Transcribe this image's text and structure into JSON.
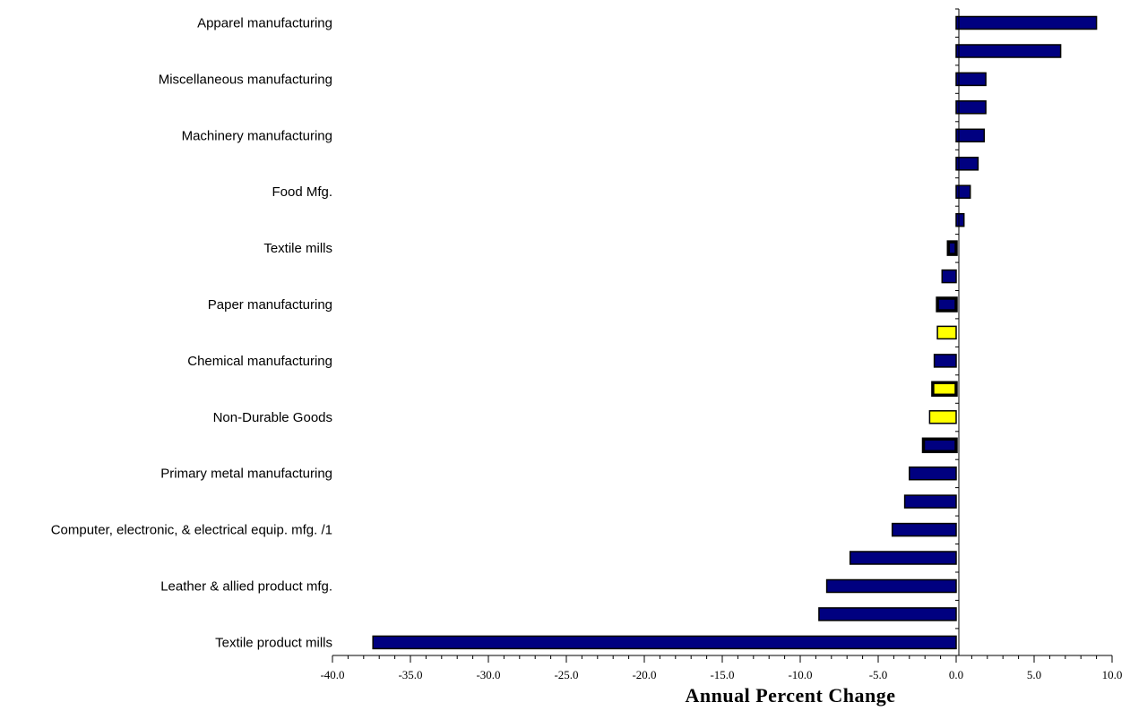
{
  "chart_data": {
    "type": "bar",
    "orientation": "horizontal",
    "title": "",
    "xlabel": "Annual Percent Change",
    "ylabel": "",
    "xlim": [
      -40,
      10
    ],
    "xticks": [
      -40,
      -35,
      -30,
      -25,
      -20,
      -15,
      -10,
      -5,
      0,
      5,
      10
    ],
    "xtick_labels": [
      "-40.0",
      "-35.0",
      "-30.0",
      "-25.0",
      "-20.0",
      "-15.0",
      "-10.0",
      "-5.0",
      "0.0",
      "5.0",
      "10.0"
    ],
    "grid": false,
    "legend": "none",
    "colors": {
      "navy": "#000080",
      "yellow": "#ffff00",
      "outline": "#000000"
    },
    "bars": [
      {
        "label": "Apparel manufacturing",
        "value": 9.0,
        "fill": "navy",
        "thick_border": false
      },
      {
        "label": "",
        "value": 6.7,
        "fill": "navy",
        "thick_border": false
      },
      {
        "label": "Miscellaneous manufacturing",
        "value": 1.9,
        "fill": "navy",
        "thick_border": false
      },
      {
        "label": "",
        "value": 1.9,
        "fill": "navy",
        "thick_border": false
      },
      {
        "label": "Machinery manufacturing",
        "value": 1.8,
        "fill": "navy",
        "thick_border": false
      },
      {
        "label": "",
        "value": 1.4,
        "fill": "navy",
        "thick_border": false
      },
      {
        "label": "Food Mfg.",
        "value": 0.9,
        "fill": "navy",
        "thick_border": false
      },
      {
        "label": "",
        "value": 0.5,
        "fill": "navy",
        "thick_border": false
      },
      {
        "label": "Textile mills",
        "value": -0.5,
        "fill": "navy",
        "thick_border": true
      },
      {
        "label": "",
        "value": -0.9,
        "fill": "navy",
        "thick_border": false
      },
      {
        "label": "Paper manufacturing",
        "value": -1.2,
        "fill": "navy",
        "thick_border": true
      },
      {
        "label": "",
        "value": -1.2,
        "fill": "yellow",
        "thick_border": false
      },
      {
        "label": "Chemical manufacturing",
        "value": -1.4,
        "fill": "navy",
        "thick_border": false
      },
      {
        "label": "",
        "value": -1.5,
        "fill": "yellow",
        "thick_border": true
      },
      {
        "label": "Non-Durable Goods",
        "value": -1.7,
        "fill": "yellow",
        "thick_border": false
      },
      {
        "label": "",
        "value": -2.1,
        "fill": "navy",
        "thick_border": true
      },
      {
        "label": "Primary metal manufacturing",
        "value": -3.0,
        "fill": "navy",
        "thick_border": false
      },
      {
        "label": "",
        "value": -3.3,
        "fill": "navy",
        "thick_border": false
      },
      {
        "label": "Computer, electronic, & electrical equip. mfg. /1",
        "value": -4.1,
        "fill": "navy",
        "thick_border": false
      },
      {
        "label": "",
        "value": -6.8,
        "fill": "navy",
        "thick_border": false
      },
      {
        "label": "Leather & allied product mfg.",
        "value": -8.3,
        "fill": "navy",
        "thick_border": false
      },
      {
        "label": "",
        "value": -8.8,
        "fill": "navy",
        "thick_border": false
      },
      {
        "label": "Textile product mills",
        "value": -37.4,
        "fill": "navy",
        "thick_border": false
      }
    ]
  }
}
